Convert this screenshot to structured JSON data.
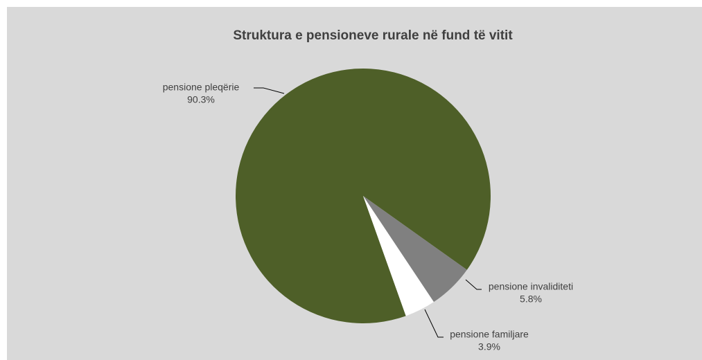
{
  "chart_data": {
    "type": "pie",
    "title": "Struktura e pensioneve rurale në fund të vitit",
    "categories": [
      "pensione pleqërie",
      "pensione invaliditeti",
      "pensione familjare"
    ],
    "values": [
      90.3,
      5.8,
      3.9
    ],
    "value_labels": [
      "90.3%",
      "5.8%",
      "3.9%"
    ],
    "colors": [
      "#4e5f28",
      "#808080",
      "#ffffff"
    ]
  }
}
